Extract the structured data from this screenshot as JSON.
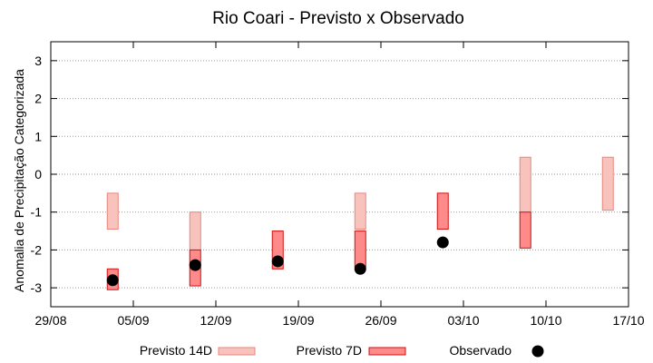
{
  "chart_data": {
    "type": "box-range",
    "title": "Rio Coari - Previsto x Observado",
    "ylabel": "Anomalia de Precipitação Categorizada",
    "xlabel": "",
    "ylim": [
      -3.5,
      3.5
    ],
    "y_ticks": [
      -3,
      -2,
      -1,
      0,
      1,
      2,
      3
    ],
    "x_ticks": [
      "29/08",
      "05/09",
      "12/09",
      "19/09",
      "26/09",
      "03/10",
      "10/10",
      "17/10"
    ],
    "grid": true,
    "legend": [
      "Previsto 14D",
      "Previsto 7D",
      "Observado"
    ],
    "series": [
      {
        "name": "Previsto 14D",
        "color": "#f9c3bd",
        "stroke": "#e9857a",
        "ranges": [
          {
            "x": 0.75,
            "low": -1.45,
            "high": -0.5
          },
          {
            "x": 1.75,
            "low": -2.0,
            "high": -1.0
          },
          {
            "x": 3.75,
            "low": -1.45,
            "high": -0.5
          },
          {
            "x": 5.75,
            "low": -1.0,
            "high": 0.45
          },
          {
            "x": 6.75,
            "low": -0.95,
            "high": 0.45
          }
        ]
      },
      {
        "name": "Previsto 7D",
        "color": "#ff8a8a",
        "stroke": "#d01010",
        "ranges": [
          {
            "x": 0.75,
            "low": -3.05,
            "high": -2.5
          },
          {
            "x": 1.75,
            "low": -2.95,
            "high": -2.0
          },
          {
            "x": 2.75,
            "low": -2.5,
            "high": -1.5
          },
          {
            "x": 3.75,
            "low": -2.45,
            "high": -1.5
          },
          {
            "x": 4.75,
            "low": -1.45,
            "high": -0.5
          },
          {
            "x": 5.75,
            "low": -1.95,
            "high": -1.0
          }
        ]
      },
      {
        "name": "Observado",
        "color": "#000000",
        "points": [
          {
            "x": 0.75,
            "y": -2.8
          },
          {
            "x": 1.75,
            "y": -2.4
          },
          {
            "x": 2.75,
            "y": -2.3
          },
          {
            "x": 3.75,
            "y": -2.5
          },
          {
            "x": 4.75,
            "y": -1.8
          }
        ]
      }
    ]
  }
}
